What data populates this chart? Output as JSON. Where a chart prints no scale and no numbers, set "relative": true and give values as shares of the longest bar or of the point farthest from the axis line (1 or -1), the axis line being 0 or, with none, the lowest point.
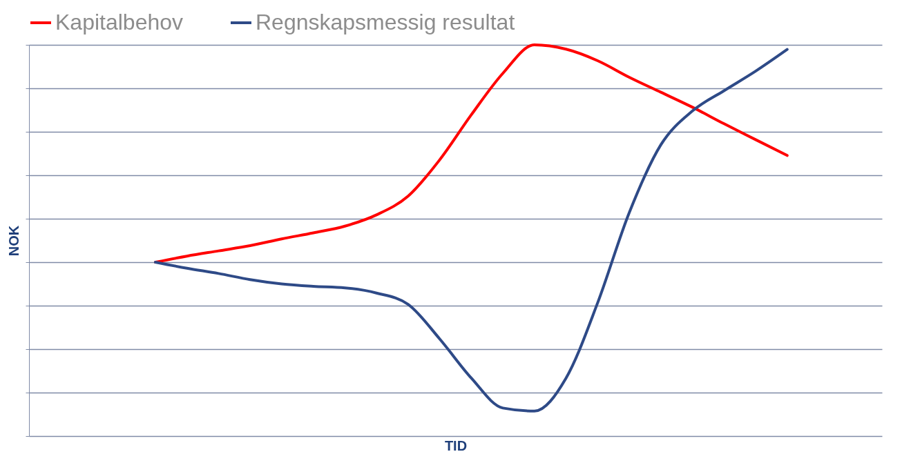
{
  "chart_data": {
    "type": "line",
    "relative": true,
    "xlabel": "TID",
    "ylabel": "NOK",
    "grid": "y",
    "legend": "top",
    "line_style": "solid",
    "categories": [
      null,
      null,
      null,
      null,
      null,
      null,
      null,
      null,
      null,
      null,
      null,
      null,
      null,
      null,
      null,
      null,
      null,
      null,
      null,
      null,
      null,
      null,
      null,
      null,
      null,
      null,
      null,
      null
    ],
    "series": [
      {
        "name": "Kapitalbehov",
        "color": "#ff0000",
        "values": [
          null,
          null,
          null,
          null,
          0,
          0.028,
          0.052,
          0.076,
          0.107,
          0.135,
          0.166,
          0.218,
          0.304,
          0.471,
          0.678,
          0.869,
          1,
          0.98,
          0.927,
          0.851,
          0.782,
          0.713,
          0.637,
          0.564,
          0.491,
          null,
          null,
          null
        ]
      },
      {
        "name": "Regnskapsmessig resultat",
        "color": "#2e4a87",
        "values": [
          null,
          null,
          null,
          null,
          0,
          -0.028,
          -0.052,
          -0.08,
          -0.1,
          -0.111,
          -0.118,
          -0.142,
          -0.194,
          -0.353,
          -0.533,
          -0.671,
          -0.685,
          -0.533,
          -0.187,
          0.228,
          0.54,
          0.696,
          0.789,
          0.879,
          0.979,
          null,
          null,
          null
        ]
      }
    ]
  }
}
